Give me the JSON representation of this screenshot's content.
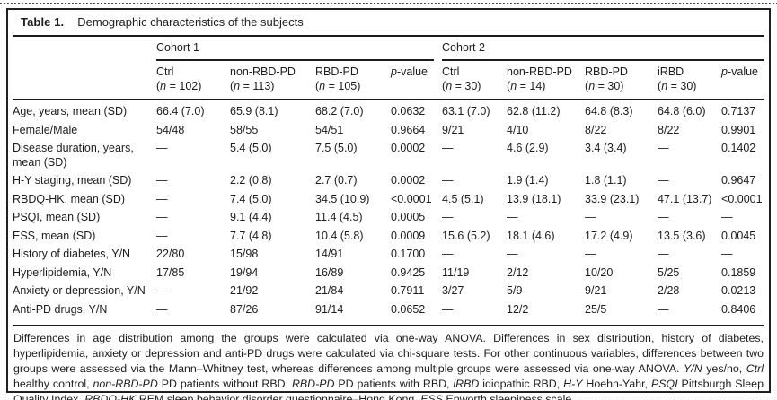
{
  "title": {
    "label": "Table 1.",
    "text": "Demographic characteristics of the subjects"
  },
  "colors": {
    "ink": "#1c1c1c",
    "background": "#ffffff",
    "rule": "#202020"
  },
  "table": {
    "group_headers": [
      {
        "label": "Cohort 1",
        "colspan": 4
      },
      {
        "label": "Cohort 2",
        "colspan": 5
      }
    ],
    "columns": [
      {
        "name": "Ctrl",
        "n": "102"
      },
      {
        "name": "non-RBD-PD",
        "n": "113"
      },
      {
        "name": "RBD-PD",
        "n": "105"
      },
      {
        "name": "p-value",
        "n": null
      },
      {
        "name": "Ctrl",
        "n": "30"
      },
      {
        "name": "non-RBD-PD",
        "n": "14"
      },
      {
        "name": "RBD-PD",
        "n": "30"
      },
      {
        "name": "iRBD",
        "n": "30"
      },
      {
        "name": "p-value",
        "n": null
      }
    ],
    "rows": [
      {
        "label": "Age, years, mean (SD)",
        "values": [
          "66.4 (7.0)",
          "65.9 (8.1)",
          "68.2 (7.0)",
          "0.0632",
          "63.1 (7.0)",
          "62.8 (11.2)",
          "64.8 (8.3)",
          "64.8 (6.0)",
          "0.7137"
        ]
      },
      {
        "label": "Female/Male",
        "values": [
          "54/48",
          "58/55",
          "54/51",
          "0.9664",
          "9/21",
          "4/10",
          "8/22",
          "8/22",
          "0.9901"
        ]
      },
      {
        "label": "Disease duration, years, mean (SD)",
        "values": [
          "—",
          "5.4 (5.0)",
          "7.5 (5.0)",
          "0.0002",
          "—",
          "4.6 (2.9)",
          "3.4 (3.4)",
          "—",
          "0.1402"
        ]
      },
      {
        "label": "H-Y staging, mean (SD)",
        "values": [
          "—",
          "2.2 (0.8)",
          "2.7 (0.7)",
          "0.0002",
          "—",
          "1.9 (1.4)",
          "1.8 (1.1)",
          "—",
          "0.9647"
        ]
      },
      {
        "label": "RBDQ-HK, mean (SD)",
        "values": [
          "—",
          "7.4 (5.0)",
          "34.5 (10.9)",
          "<0.0001",
          "4.5 (5.1)",
          "13.9 (18.1)",
          "33.9 (23.1)",
          "47.1 (13.7)",
          "<0.0001"
        ]
      },
      {
        "label": "PSQI, mean (SD)",
        "values": [
          "—",
          "9.1 (4.4)",
          "11.4 (4.5)",
          "0.0005",
          "—",
          "—",
          "—",
          "—",
          "—"
        ]
      },
      {
        "label": "ESS, mean (SD)",
        "values": [
          "—",
          "7.7 (4.8)",
          "10.4 (5.8)",
          "0.0009",
          "15.6 (5.2)",
          "18.1 (4.6)",
          "17.2 (4.9)",
          "13.5 (3.6)",
          "0.0045"
        ]
      },
      {
        "label": "History of diabetes, Y/N",
        "values": [
          "22/80",
          "15/98",
          "14/91",
          "0.1700",
          "—",
          "—",
          "—",
          "—",
          "—"
        ]
      },
      {
        "label": "Hyperlipidemia, Y/N",
        "values": [
          "17/85",
          "19/94",
          "16/89",
          "0.9425",
          "11/19",
          "2/12",
          "10/20",
          "5/25",
          "0.1859"
        ]
      },
      {
        "label": "Anxiety or depression, Y/N",
        "values": [
          "—",
          "21/92",
          "21/84",
          "0.7911",
          "3/27",
          "5/9",
          "9/21",
          "2/28",
          "0.0213"
        ]
      },
      {
        "label": "Anti-PD drugs, Y/N",
        "values": [
          "—",
          "87/26",
          "91/14",
          "0.0652",
          "—",
          "12/2",
          "25/5",
          "—",
          "0.8406"
        ]
      }
    ]
  },
  "footnote": {
    "segments": [
      {
        "text": "Differences in age distribution among the groups were calculated via one-way ANOVA. Differences in sex distribution, history of diabetes, hyperlipidemia, anxiety or depression and anti-PD drugs were calculated via chi-square tests. For other continuous variables, differences between two groups were assessed via the Mann–Whitney test, whereas differences among multiple groups were assessed via one-way ANOVA. ",
        "italic": false
      },
      {
        "text": "Y/N",
        "italic": true
      },
      {
        "text": " yes/no, ",
        "italic": false
      },
      {
        "text": "Ctrl",
        "italic": true
      },
      {
        "text": " healthy control, ",
        "italic": false
      },
      {
        "text": "non-RBD-PD",
        "italic": true
      },
      {
        "text": " PD patients without RBD, ",
        "italic": false
      },
      {
        "text": "RBD-PD",
        "italic": true
      },
      {
        "text": " PD patients with RBD, ",
        "italic": false
      },
      {
        "text": "iRBD",
        "italic": true
      },
      {
        "text": " idiopathic RBD, ",
        "italic": false
      },
      {
        "text": "H-Y",
        "italic": true
      },
      {
        "text": " Hoehn-Yahr, ",
        "italic": false
      },
      {
        "text": "PSQI",
        "italic": true
      },
      {
        "text": " Pittsburgh Sleep Quality Index, ",
        "italic": false
      },
      {
        "text": "RBDQ-HK",
        "italic": true
      },
      {
        "text": " REM sleep behavior disorder questionnaire–Hong Kong, ",
        "italic": false
      },
      {
        "text": "ESS",
        "italic": true
      },
      {
        "text": " Epworth sleepiness scale",
        "italic": false
      }
    ]
  }
}
